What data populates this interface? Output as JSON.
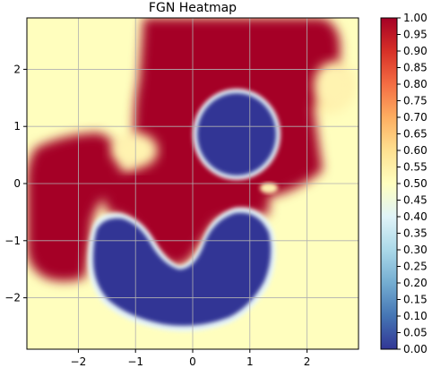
{
  "chart_data": {
    "type": "heatmap",
    "title": "FGN Heatmap",
    "xlabel": "",
    "ylabel": "",
    "xlim": [
      -2.9,
      2.9
    ],
    "ylim": [
      -2.9,
      2.9
    ],
    "grid": true,
    "x_ticks": [
      -2,
      -1,
      0,
      1,
      2
    ],
    "y_ticks": [
      2,
      1,
      0,
      -1,
      -2
    ],
    "x_tick_labels": [
      "−2",
      "−1",
      "0",
      "1",
      "2"
    ],
    "y_tick_labels": [
      "2",
      "1",
      "0",
      "−1",
      "−2"
    ],
    "colormap": "RdYlBu_r",
    "colorbar": {
      "range": [
        0,
        1
      ],
      "ticks": [
        1.0,
        0.95,
        0.9,
        0.85,
        0.8,
        0.75,
        0.7,
        0.65,
        0.6,
        0.55,
        0.5,
        0.45,
        0.4,
        0.35,
        0.3,
        0.25,
        0.2,
        0.15,
        0.1,
        0.05,
        0.0
      ],
      "tick_labels": [
        "1.00",
        "0.95",
        "0.90",
        "0.85",
        "0.80",
        "0.75",
        "0.70",
        "0.65",
        "0.60",
        "0.55",
        "0.50",
        "0.45",
        "0.40",
        "0.35",
        "0.30",
        "0.25",
        "0.20",
        "0.15",
        "0.10",
        "0.05",
        "0.00"
      ],
      "stops": [
        "#313695",
        "#4575b4",
        "#74add1",
        "#abd9e9",
        "#e0f3f8",
        "#ffffbf",
        "#fee090",
        "#fdae61",
        "#f46d43",
        "#d73027",
        "#a50026"
      ]
    },
    "regions": [
      {
        "value": 1.0,
        "shape": "upper-band",
        "x_range": [
          -1.0,
          2.3
        ],
        "y_range": [
          1.0,
          2.9
        ]
      },
      {
        "value": 1.0,
        "shape": "left-lobe",
        "x_range": [
          -2.9,
          -0.5
        ],
        "y_range": [
          -1.7,
          0.9
        ]
      },
      {
        "value": 1.0,
        "shape": "center-band",
        "x_range": [
          -1.0,
          2.2
        ],
        "y_range": [
          -1.5,
          0.9
        ]
      },
      {
        "value": 0.0,
        "shape": "upper-circle",
        "center": [
          0.8,
          0.9
        ],
        "radius": 0.7
      },
      {
        "value": 0.0,
        "shape": "lower-crescent",
        "x_range": [
          -1.8,
          1.5
        ],
        "y_range": [
          -2.5,
          -0.4
        ]
      },
      {
        "value": 0.55,
        "shape": "spot",
        "center": [
          -1.1,
          0.5
        ]
      },
      {
        "value": 0.6,
        "shape": "spot",
        "center": [
          2.3,
          1.7
        ]
      }
    ]
  }
}
